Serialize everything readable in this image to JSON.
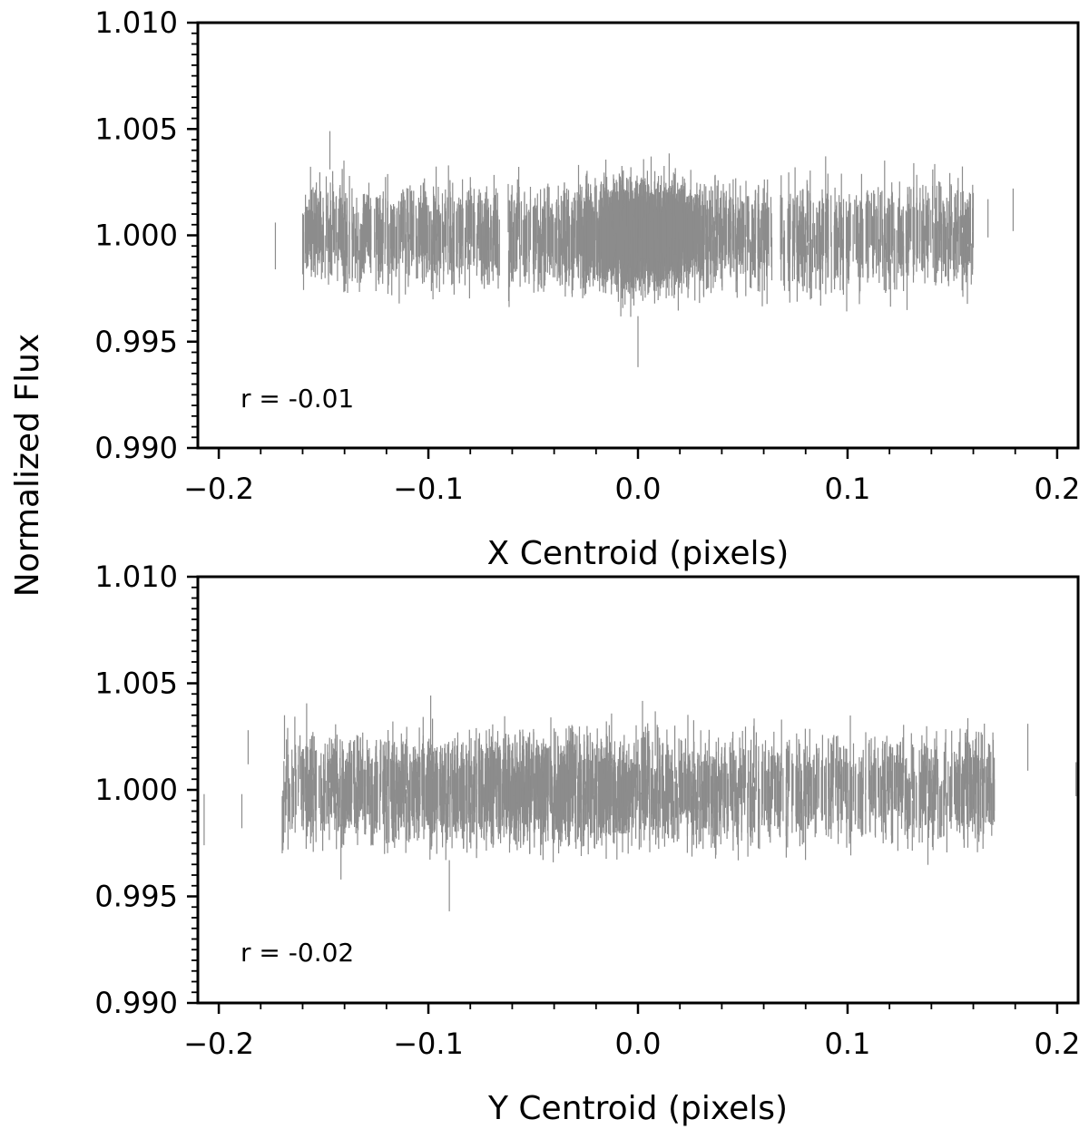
{
  "figure": {
    "shared_ylabel": "Normalized Flux"
  },
  "chart_data": [
    {
      "type": "errorbar",
      "xlabel": "X Centroid (pixels)",
      "ylabel": "Normalized Flux",
      "xlim": [
        -0.21,
        0.21
      ],
      "ylim": [
        0.99,
        1.01
      ],
      "xticks": [
        -0.2,
        -0.1,
        0.0,
        0.1,
        0.2
      ],
      "xtick_labels": [
        "−0.2",
        "−0.1",
        "0.0",
        "0.1",
        "0.2"
      ],
      "yticks": [
        0.99,
        0.995,
        1.0,
        1.005,
        1.01
      ],
      "ytick_labels": [
        "0.990",
        "0.995",
        "1.000",
        "1.005",
        "1.010"
      ],
      "annotation": "r = -0.01",
      "color": "#8c8c8c",
      "distribution": {
        "center": 0.0,
        "core_spread": 0.015,
        "range": [
          -0.16,
          0.16
        ],
        "flux_center": 1.0,
        "flux_scatter": 0.0008,
        "errbar_half": 0.0012
      },
      "outliers": [
        {
          "x": -0.173,
          "y": 0.9995,
          "err": 0.0011
        },
        {
          "x": -0.147,
          "y": 1.004,
          "err": 0.0009
        },
        {
          "x": 0.179,
          "y": 1.0012,
          "err": 0.001
        },
        {
          "x": 0.167,
          "y": 1.0008,
          "err": 0.0009
        },
        {
          "x": 0.0,
          "y": 0.995,
          "err": 0.0012
        }
      ]
    },
    {
      "type": "errorbar",
      "xlabel": "Y Centroid (pixels)",
      "ylabel": "Normalized Flux",
      "xlim": [
        -0.21,
        0.21
      ],
      "ylim": [
        0.99,
        1.01
      ],
      "xticks": [
        -0.2,
        -0.1,
        0.0,
        0.1,
        0.2
      ],
      "xtick_labels": [
        "−0.2",
        "−0.1",
        "0.0",
        "0.1",
        "0.2"
      ],
      "yticks": [
        0.99,
        0.995,
        1.0,
        1.005,
        1.01
      ],
      "ytick_labels": [
        "0.990",
        "0.995",
        "1.000",
        "1.005",
        "1.010"
      ],
      "annotation": "r = -0.02",
      "color": "#8c8c8c",
      "distribution": {
        "center": -0.05,
        "core_spread": 0.05,
        "range": [
          -0.17,
          0.17
        ],
        "flux_center": 1.0,
        "flux_scatter": 0.0008,
        "errbar_half": 0.0012
      },
      "outliers": [
        {
          "x": -0.207,
          "y": 0.9986,
          "err": 0.0012
        },
        {
          "x": -0.189,
          "y": 0.999,
          "err": 0.0008
        },
        {
          "x": -0.186,
          "y": 1.002,
          "err": 0.0008
        },
        {
          "x": 0.186,
          "y": 1.002,
          "err": 0.0011
        },
        {
          "x": 0.209,
          "y": 1.0005,
          "err": 0.0008
        },
        {
          "x": 0.17,
          "y": 0.9995,
          "err": 0.001
        },
        {
          "x": -0.09,
          "y": 0.9955,
          "err": 0.0012
        }
      ]
    }
  ]
}
